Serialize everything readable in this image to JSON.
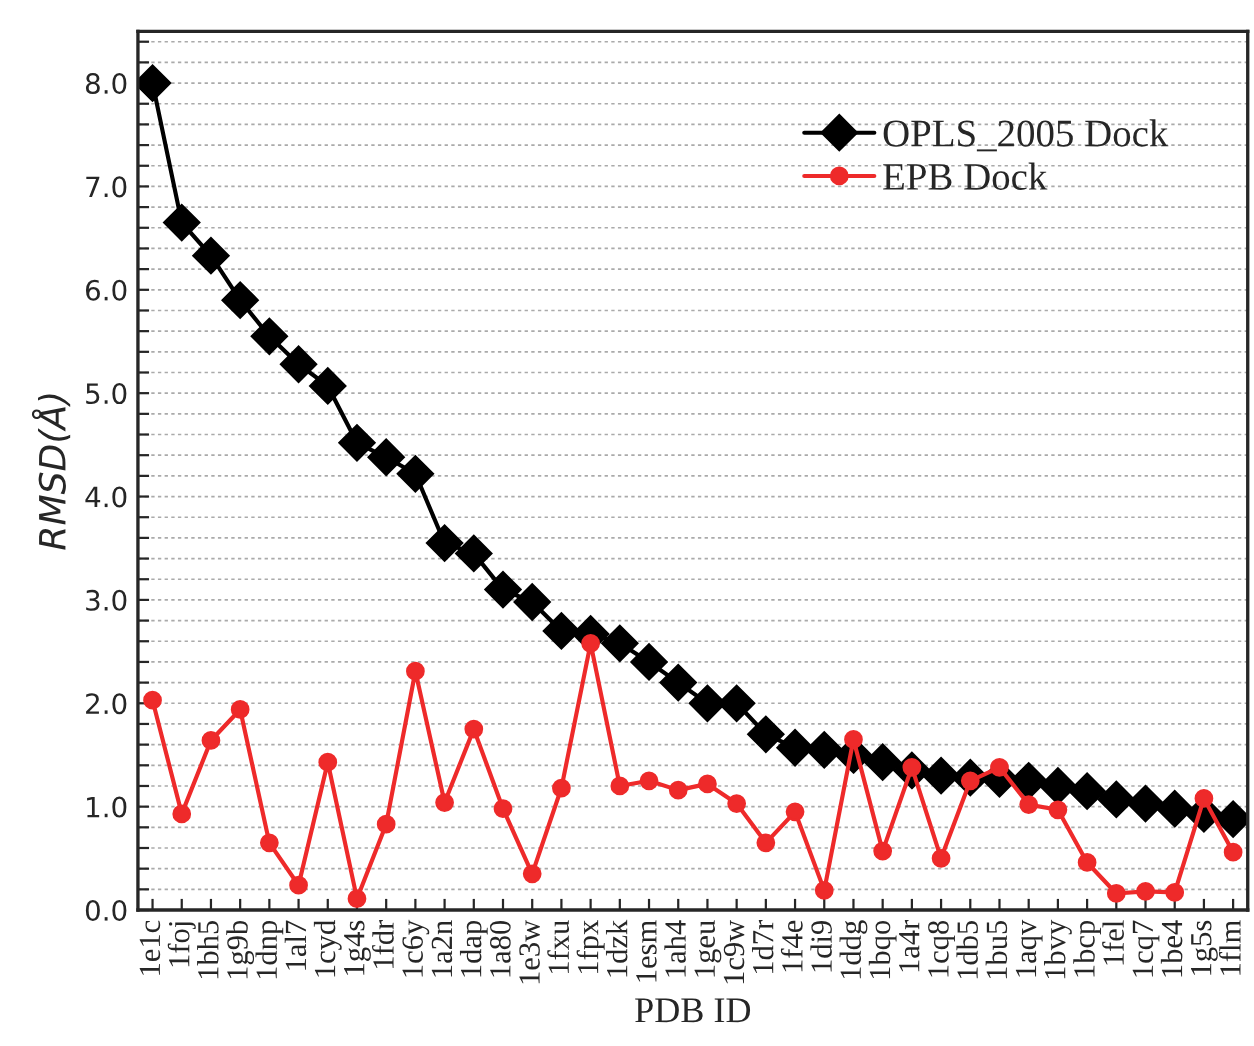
{
  "chart_data": {
    "type": "line",
    "xlabel": "PDB ID",
    "ylabel": "RMSD(Å)",
    "categories": [
      "1e1c",
      "1foj",
      "1bh5",
      "1g9b",
      "1dnp",
      "1al7",
      "1cyd",
      "1g4s",
      "1fdr",
      "1c6y",
      "1a2n",
      "1dap",
      "1a80",
      "1e3w",
      "1fxu",
      "1fpx",
      "1dzk",
      "1esm",
      "1ah4",
      "1geu",
      "1c9w",
      "1d7r",
      "1f4e",
      "1di9",
      "1ddg",
      "1bqo",
      "1a4r",
      "1cq8",
      "1db5",
      "1bu5",
      "1aqv",
      "1bvy",
      "1bcp",
      "1fel",
      "1cq7",
      "1be4",
      "1g5s",
      "1flm"
    ],
    "series": [
      {
        "name": "OPLS_2005 Dock",
        "color": "#000000",
        "marker": "diamond",
        "values": [
          8.0,
          6.65,
          6.33,
          5.9,
          5.55,
          5.28,
          5.07,
          4.52,
          4.38,
          4.22,
          3.55,
          3.45,
          3.1,
          2.98,
          2.7,
          2.67,
          2.58,
          2.4,
          2.2,
          2.0,
          2.0,
          1.7,
          1.57,
          1.55,
          1.5,
          1.43,
          1.35,
          1.3,
          1.28,
          1.27,
          1.25,
          1.2,
          1.15,
          1.07,
          1.03,
          0.98,
          0.93,
          0.88
        ]
      },
      {
        "name": "EPB Dock",
        "color": "#ee2a2a",
        "marker": "circle",
        "values": [
          2.03,
          0.93,
          1.64,
          1.94,
          0.65,
          0.24,
          1.43,
          0.11,
          0.83,
          2.31,
          1.04,
          1.75,
          0.98,
          0.35,
          1.18,
          2.58,
          1.2,
          1.25,
          1.16,
          1.22,
          1.03,
          0.65,
          0.95,
          0.19,
          1.65,
          0.57,
          1.38,
          0.5,
          1.25,
          1.38,
          1.02,
          0.97,
          0.46,
          0.16,
          0.18,
          0.17,
          1.08,
          0.56
        ]
      }
    ],
    "ylim": [
      0,
      8.5
    ],
    "yticks": [
      {
        "value": 0,
        "label": "0.0"
      },
      {
        "value": 0.2,
        "label": null
      },
      {
        "value": 0.4,
        "label": null
      },
      {
        "value": 0.6,
        "label": null
      },
      {
        "value": 0.8,
        "label": null
      },
      {
        "value": 1,
        "label": "1.0"
      },
      {
        "value": 1.2,
        "label": null
      },
      {
        "value": 1.4,
        "label": null
      },
      {
        "value": 1.6,
        "label": null
      },
      {
        "value": 1.8,
        "label": null
      },
      {
        "value": 2,
        "label": "2.0"
      },
      {
        "value": 2.2,
        "label": null
      },
      {
        "value": 2.4,
        "label": null
      },
      {
        "value": 2.6,
        "label": null
      },
      {
        "value": 2.8,
        "label": null
      },
      {
        "value": 3,
        "label": "3.0"
      },
      {
        "value": 3.2,
        "label": null
      },
      {
        "value": 3.4,
        "label": null
      },
      {
        "value": 3.6,
        "label": null
      },
      {
        "value": 3.8,
        "label": null
      },
      {
        "value": 4,
        "label": "4.0"
      },
      {
        "value": 4.2,
        "label": null
      },
      {
        "value": 4.4,
        "label": null
      },
      {
        "value": 4.6,
        "label": null
      },
      {
        "value": 4.8,
        "label": null
      },
      {
        "value": 5,
        "label": "5.0"
      },
      {
        "value": 5.2,
        "label": null
      },
      {
        "value": 5.4,
        "label": null
      },
      {
        "value": 5.6,
        "label": null
      },
      {
        "value": 5.8,
        "label": null
      },
      {
        "value": 6,
        "label": "6.0"
      },
      {
        "value": 6.2,
        "label": null
      },
      {
        "value": 6.4,
        "label": null
      },
      {
        "value": 6.6,
        "label": null
      },
      {
        "value": 6.8,
        "label": null
      },
      {
        "value": 7,
        "label": "7.0"
      },
      {
        "value": 7.2,
        "label": null
      },
      {
        "value": 7.4,
        "label": null
      },
      {
        "value": 7.6,
        "label": null
      },
      {
        "value": 7.8,
        "label": null
      },
      {
        "value": 8,
        "label": "8.0"
      },
      {
        "value": 8.2,
        "label": null
      },
      {
        "value": 8.4,
        "label": null
      }
    ],
    "grid": "y",
    "legend": "top right",
    "line_style": "solid"
  }
}
